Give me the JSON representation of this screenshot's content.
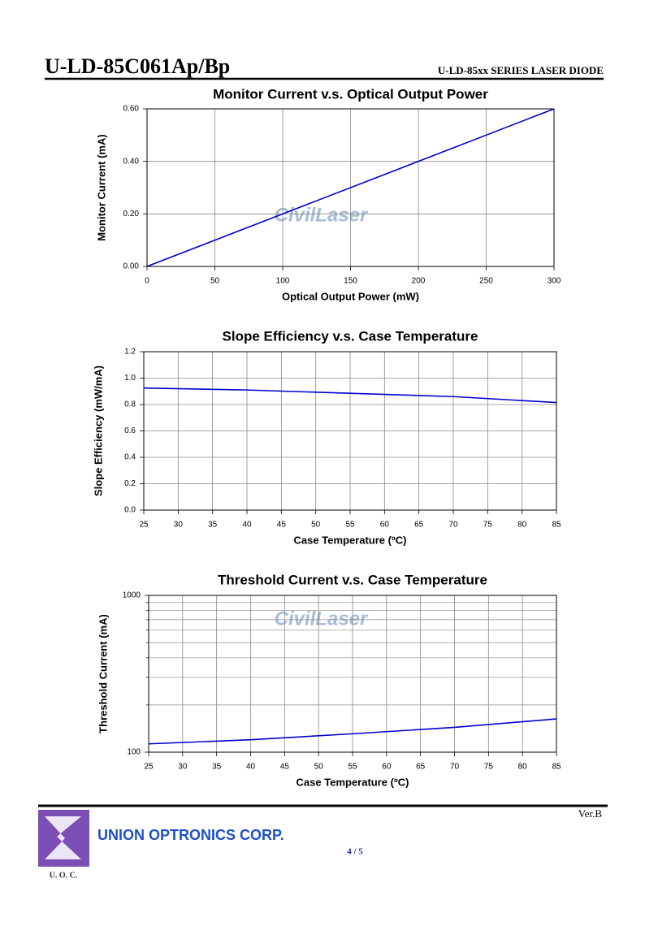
{
  "header": {
    "title": "U-LD-85C061Ap/Bp",
    "series": "U-LD-85xx SERIES LASER DIODE"
  },
  "watermark": "CivilLaser",
  "chart_data": [
    {
      "type": "line",
      "title": "Monitor Current v.s. Optical Output Power",
      "xlabel": "Optical Output Power (mW)",
      "ylabel": "Monitor Current (mA)",
      "x": [
        0,
        300
      ],
      "values": [
        0,
        0.6
      ],
      "color": "#0000cc",
      "xlim": [
        0,
        300
      ],
      "xticks": [
        0,
        50,
        100,
        150,
        200,
        250,
        300
      ],
      "ylim": [
        0,
        0.6
      ],
      "yticks": [
        {
          "value": 0,
          "label": "0.00"
        },
        {
          "value": 0.2,
          "label": "0.20"
        },
        {
          "value": 0.4,
          "label": "0.40"
        },
        {
          "value": 0.6,
          "label": "0.60"
        }
      ],
      "grid": true
    },
    {
      "type": "line",
      "title": "Slope Efficiency v.s. Case Temperature",
      "xlabel": "Case Temperature (ºC)",
      "ylabel": "Slope Efficiency (mW/mA)",
      "x": [
        25,
        40,
        55,
        70,
        85
      ],
      "values": [
        0.925,
        0.91,
        0.885,
        0.86,
        0.815
      ],
      "color": "#0000cc",
      "xlim": [
        25,
        85
      ],
      "xticks": [
        25,
        30,
        35,
        40,
        45,
        50,
        55,
        60,
        65,
        70,
        75,
        80,
        85
      ],
      "ylim": [
        0,
        1.2
      ],
      "yticks": [
        {
          "value": 0,
          "label": "0.0"
        },
        0.2,
        0.4,
        0.6,
        0.8,
        {
          "value": 1,
          "label": "1.0"
        },
        1.2
      ],
      "grid": true
    },
    {
      "type": "line",
      "title": "Threshold Current v.s. Case Temperature",
      "xlabel": "Case Temperature (ºC)",
      "ylabel": "Threshold Current (mA)",
      "x": [
        25,
        40,
        55,
        70,
        85
      ],
      "values": [
        113,
        120,
        131,
        144,
        163
      ],
      "color": "#0000cc",
      "xlim": [
        25,
        85
      ],
      "xticks": [
        25,
        30,
        35,
        40,
        45,
        50,
        55,
        60,
        65,
        70,
        75,
        80,
        85
      ],
      "ylim": [
        100,
        1000
      ],
      "yticks": [
        100,
        1000
      ],
      "yminorticks": [
        200,
        300,
        400,
        500,
        600,
        700,
        800,
        900
      ],
      "ylog": true,
      "grid": true
    }
  ],
  "footer": {
    "company": "UNION OPTRONICS CORP.",
    "logo_text": "U. O. C.",
    "version": "Ver.B",
    "page": "4 / 5"
  }
}
